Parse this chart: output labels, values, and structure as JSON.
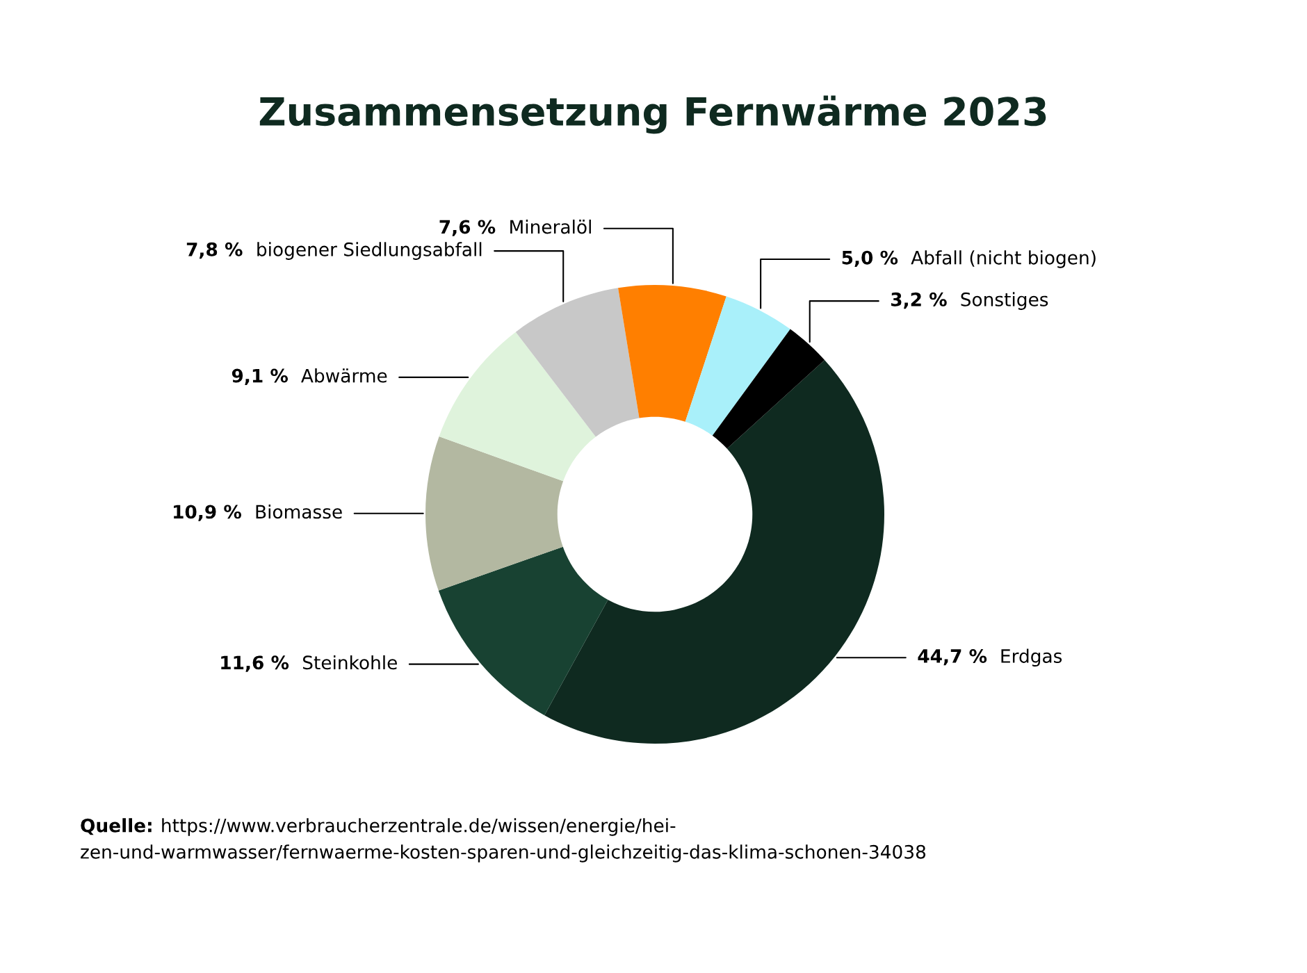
{
  "chart_data": {
    "type": "donut",
    "title": "Zusammensetzung Fernwärme 2023",
    "categories": [
      "Erdgas",
      "Steinkohle",
      "Biomasse",
      "Abwärme",
      "biogener Siedlungsabfall",
      "Mineralöl",
      "Abfall (nicht biogen)",
      "Sonstiges"
    ],
    "values": [
      44.7,
      11.6,
      10.9,
      9.1,
      7.8,
      7.6,
      5.0,
      3.2
    ],
    "colors": [
      "#0f2a20",
      "#184232",
      "#b3b8a1",
      "#dff3dc",
      "#c8c8c8",
      "#ff7f00",
      "#a9f0fa",
      "#000000"
    ],
    "value_labels": [
      "44,7 %",
      "11,6 %",
      "10,9 %",
      "9,1 %",
      "7,8 %",
      "7,6 %",
      "5,0 %",
      "3,2 %"
    ],
    "annotations": [
      "Quelle: https://www.verbraucherzentrale.de/wissen/energie/hei-\nzen-und-warmwasser/fernwaerme-kosten-sparen-und-gleichzeitig-das-klima-schonen-34038"
    ]
  }
}
